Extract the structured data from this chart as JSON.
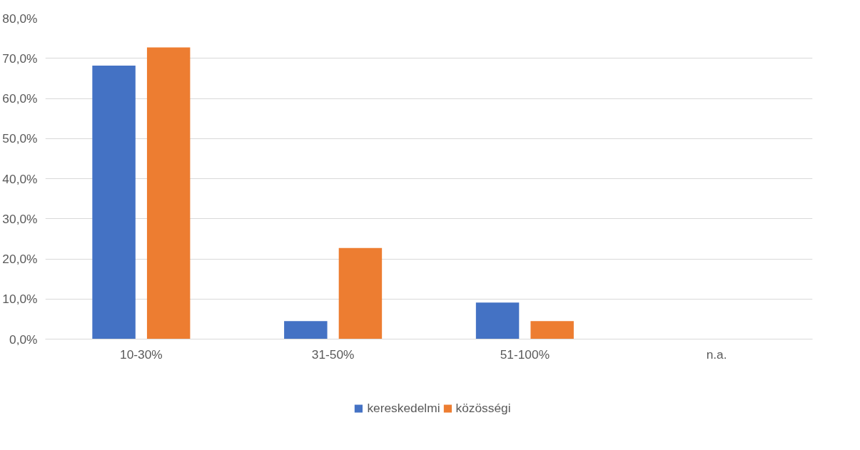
{
  "chart_data": {
    "type": "bar",
    "categories": [
      "10-30%",
      "31-50%",
      "51-100%",
      "n.a."
    ],
    "series": [
      {
        "name": "kereskedelmi",
        "color": "#4472c4",
        "values": [
          68.2,
          4.5,
          9.1,
          0
        ]
      },
      {
        "name": "közösségi",
        "color": "#ed7d31",
        "values": [
          72.7,
          22.7,
          4.5,
          0
        ]
      }
    ],
    "ylim": [
      0,
      80
    ],
    "yticks": [
      {
        "value": 0,
        "label": "0,0%"
      },
      {
        "value": 10,
        "label": "10,0%"
      },
      {
        "value": 20,
        "label": "20,0%"
      },
      {
        "value": 30,
        "label": "30,0%"
      },
      {
        "value": 40,
        "label": "40,0%"
      },
      {
        "value": 50,
        "label": "50,0%"
      },
      {
        "value": 60,
        "label": "60,0%"
      },
      {
        "value": 70,
        "label": "70,0%"
      },
      {
        "value": 80,
        "label": "80,0%"
      }
    ],
    "grid": "y",
    "legend": "bottom"
  }
}
